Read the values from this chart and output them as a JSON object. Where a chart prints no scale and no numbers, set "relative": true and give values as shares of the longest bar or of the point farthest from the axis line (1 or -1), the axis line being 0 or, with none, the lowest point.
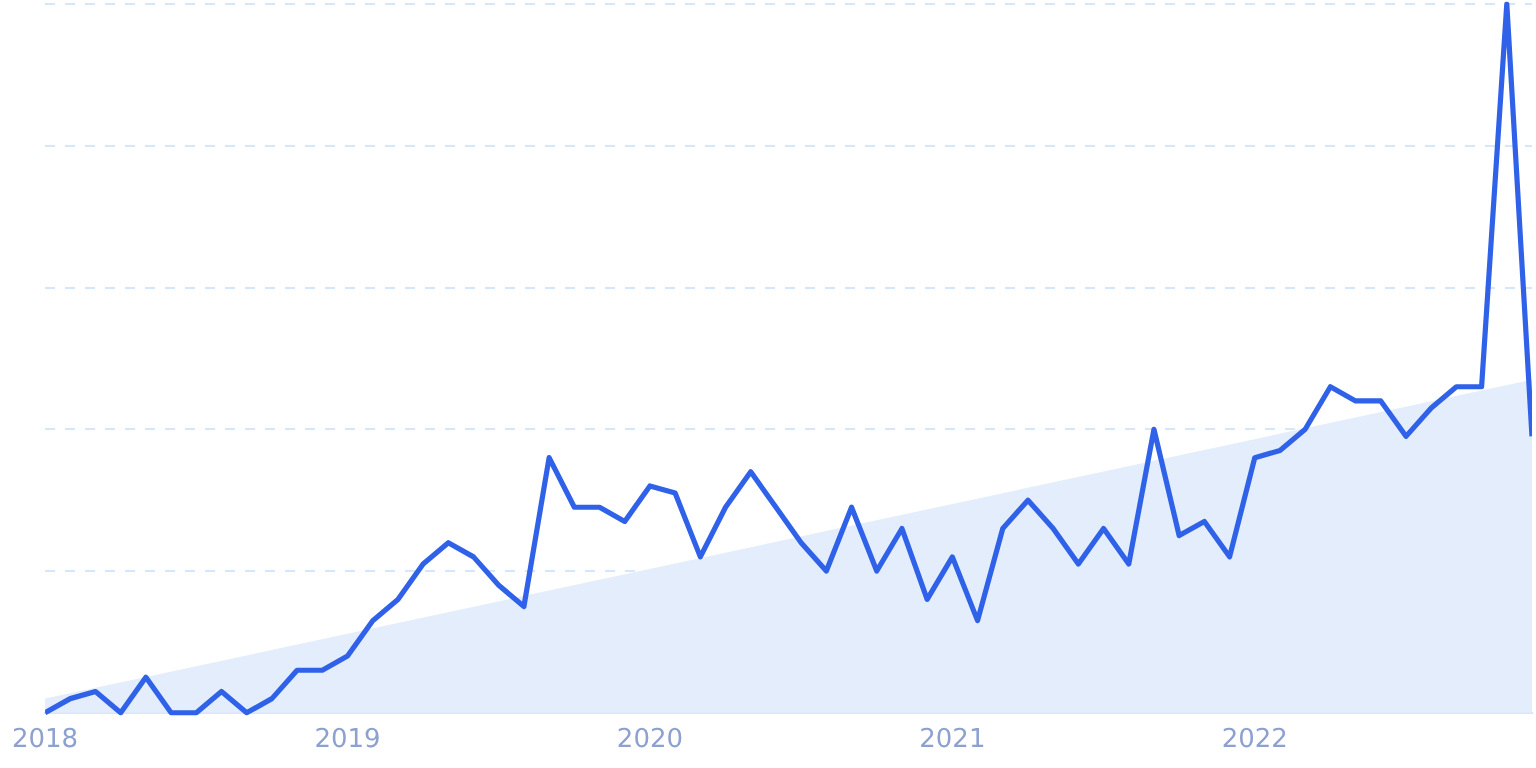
{
  "chart_data": {
    "type": "line",
    "relative": true,
    "grid": "y",
    "legend": false,
    "marker": "none",
    "line_style": "solid",
    "xlim": [
      "2018-01",
      "2022-12"
    ],
    "xticks": [
      "2018",
      "2019",
      "2020",
      "2021",
      "2022"
    ],
    "series": [
      {
        "type": "area",
        "color": "#e3edfb",
        "x": [
          "2018-01",
          "2022-12"
        ],
        "values": [
          0.02,
          0.47
        ]
      },
      {
        "color": "#2f62e8",
        "x": [
          "2018-01",
          "2018-02",
          "2018-03",
          "2018-04",
          "2018-05",
          "2018-06",
          "2018-07",
          "2018-08",
          "2018-09",
          "2018-10",
          "2018-11",
          "2018-12",
          "2019-01",
          "2019-02",
          "2019-03",
          "2019-04",
          "2019-05",
          "2019-06",
          "2019-07",
          "2019-08",
          "2019-09",
          "2019-10",
          "2019-11",
          "2019-12",
          "2020-01",
          "2020-02",
          "2020-03",
          "2020-04",
          "2020-05",
          "2020-06",
          "2020-07",
          "2020-08",
          "2020-09",
          "2020-10",
          "2020-11",
          "2020-12",
          "2021-01",
          "2021-02",
          "2021-03",
          "2021-04",
          "2021-05",
          "2021-06",
          "2021-07",
          "2021-08",
          "2021-09",
          "2021-10",
          "2021-11",
          "2021-12",
          "2022-01",
          "2022-02",
          "2022-03",
          "2022-04",
          "2022-05",
          "2022-06",
          "2022-07",
          "2022-08",
          "2022-09",
          "2022-10",
          "2022-11",
          "2022-12"
        ],
        "values": [
          0,
          0.02,
          0.03,
          0,
          0.05,
          0,
          0,
          0.03,
          0,
          0.02,
          0.06,
          0.06,
          0.08,
          0.13,
          0.16,
          0.21,
          0.24,
          0.22,
          0.18,
          0.15,
          0.36,
          0.29,
          0.29,
          0.27,
          0.32,
          0.31,
          0.22,
          0.29,
          0.34,
          0.29,
          0.24,
          0.2,
          0.29,
          0.2,
          0.26,
          0.16,
          0.22,
          0.13,
          0.26,
          0.3,
          0.26,
          0.21,
          0.26,
          0.21,
          0.4,
          0.25,
          0.27,
          0.22,
          0.36,
          0.37,
          0.4,
          0.46,
          0.44,
          0.44,
          0.39,
          0.43,
          0.46,
          0.46,
          1,
          0.39
        ]
      }
    ]
  }
}
